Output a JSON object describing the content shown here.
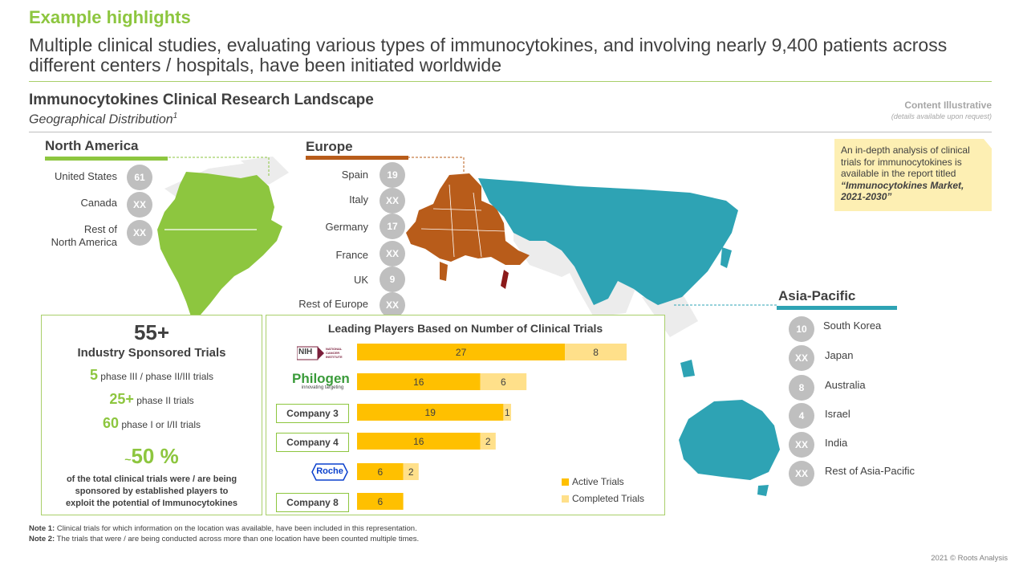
{
  "header": {
    "title": "Example highlights",
    "subtitle": "Multiple clinical studies, evaluating various types of immunocytokines, and involving nearly 9,400 patients across different centers / hospitals, have been initiated worldwide"
  },
  "section": {
    "title": "Immunocytokines Clinical  Research Landscape",
    "subtitle": "Geographical Distribution",
    "subtitle_sup": "1",
    "illustrative": "Content Illustrative",
    "illustrative_note": "(details available upon request)"
  },
  "colors": {
    "green": "#8dc63f",
    "europe": "#b85c1a",
    "asia": "#2ea3b4",
    "active": "#ffc000",
    "completed": "#ffe08a",
    "circle": "#bfbfbf"
  },
  "regions": {
    "north_america": {
      "title": "North America",
      "countries": [
        {
          "name": "United States",
          "value": "61"
        },
        {
          "name": "Canada",
          "value": "XX"
        },
        {
          "name": "Rest of North America",
          "line1": "Rest of",
          "line2": "North America",
          "value": "XX"
        }
      ]
    },
    "europe": {
      "title": "Europe",
      "countries": [
        {
          "name": "Spain",
          "value": "19"
        },
        {
          "name": "Italy",
          "value": "XX"
        },
        {
          "name": "Germany",
          "value": "17"
        },
        {
          "name": "France",
          "value": "XX"
        },
        {
          "name": "UK",
          "value": "9"
        },
        {
          "name": "Rest of Europe",
          "value": "XX"
        }
      ]
    },
    "asia_pacific": {
      "title": "Asia-Pacific",
      "countries": [
        {
          "name": "South Korea",
          "value": "10"
        },
        {
          "name": "Japan",
          "value": "XX"
        },
        {
          "name": "Australia",
          "value": "8"
        },
        {
          "name": "Israel",
          "value": "4"
        },
        {
          "name": "India",
          "value": "XX"
        },
        {
          "name": "Rest of Asia-Pacific",
          "value": "XX"
        }
      ]
    }
  },
  "callout": {
    "text": "An in-depth analysis of clinical trials for immunocytokines is available  in the report titled",
    "report": "“Immunocytokines Market, 2021-2030”"
  },
  "stats": {
    "big_value": "55+",
    "big_label": "Industry  Sponsored Trials",
    "phase3_value": "5",
    "phase3_label": " phase III  / phase II/III trials",
    "phase2_value": "25+",
    "phase2_label": " phase II trials",
    "phase1_value": "60",
    "phase1_label": " phase I  or I/II trials",
    "percent_prefix": "~",
    "percent_value": "50 %",
    "percent_text_1": "of the total clinical trials were / are being",
    "percent_text_2": "sponsored by established players to",
    "percent_text_3": "exploit the potential  of Immunocytokines"
  },
  "chart_data": {
    "type": "bar",
    "orientation": "horizontal",
    "stacked": true,
    "title": "Leading Players Based on Number of Clinical  Trials",
    "categories": [
      "NIH National Cancer Institute",
      "Philogen",
      "Company 3",
      "Company 4",
      "Roche",
      "Company 8"
    ],
    "series": [
      {
        "name": "Active Trials",
        "values": [
          27,
          16,
          19,
          16,
          6,
          6
        ]
      },
      {
        "name": "Completed Trials",
        "values": [
          8,
          6,
          1,
          2,
          2,
          0
        ]
      }
    ],
    "legend_position": "bottom-right",
    "grid": false
  },
  "logos": {
    "nih_mark": "NIH",
    "nih_text": "NATIONAL CANCER INSTITUTE",
    "philogen": "Philogen",
    "philogen_tag": "innovating targeting",
    "roche": "Roche"
  },
  "notes": {
    "note1_label": "Note 1:",
    "note1_text": " Clinical trials for which information on the location was available, have been included in this representation.",
    "note2_label": "Note 2:",
    "note2_text": " The trials that were / are being conducted across more than one location have been counted multiple  times."
  },
  "footer": {
    "copyright": "2021 © Roots Analysis"
  }
}
